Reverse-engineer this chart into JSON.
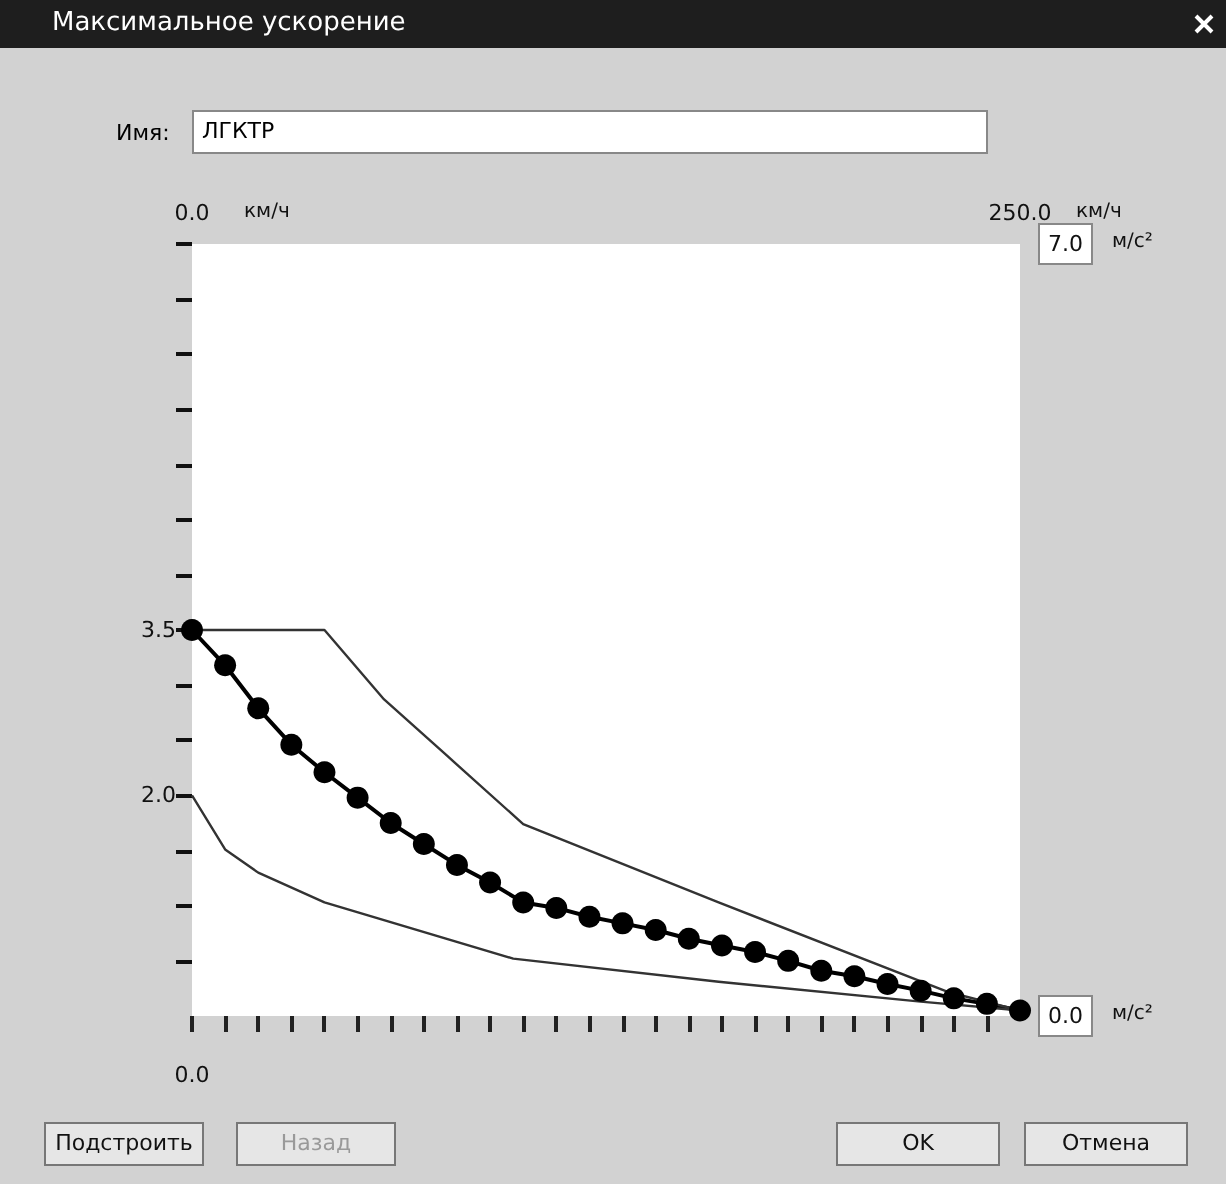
{
  "chart_data": {
    "type": "line",
    "title": "Максимальное ускорение",
    "annotations": [
      "Имя:",
      "ЛГКТР",
      "Подстроить",
      "Назад",
      "OK",
      "Отмена",
      "0.0"
    ],
    "xlim": [
      0,
      250
    ],
    "xticks": [
      {
        "value": 0,
        "label": "0.0"
      },
      {
        "value": 10,
        "label": null
      },
      {
        "value": 20,
        "label": null
      },
      {
        "value": 30,
        "label": null
      },
      {
        "value": 40,
        "label": null
      },
      {
        "value": 50,
        "label": null
      },
      {
        "value": 60,
        "label": null
      },
      {
        "value": 70,
        "label": null
      },
      {
        "value": 80,
        "label": null
      },
      {
        "value": 90,
        "label": null
      },
      {
        "value": 100,
        "label": null
      },
      {
        "value": 110,
        "label": null
      },
      {
        "value": 120,
        "label": null
      },
      {
        "value": 130,
        "label": null
      },
      {
        "value": 140,
        "label": null
      },
      {
        "value": 150,
        "label": null
      },
      {
        "value": 160,
        "label": null
      },
      {
        "value": 170,
        "label": null
      },
      {
        "value": 180,
        "label": null
      },
      {
        "value": 190,
        "label": null
      },
      {
        "value": 200,
        "label": null
      },
      {
        "value": 210,
        "label": null
      },
      {
        "value": 220,
        "label": null
      },
      {
        "value": 230,
        "label": null
      },
      {
        "value": 240,
        "label": null
      },
      {
        "value": 250,
        "label": "250.0"
      }
    ],
    "xlabel": "км/ч",
    "ylim": [
      0,
      7
    ],
    "yticks": [
      {
        "value": 0.5,
        "label": null
      },
      {
        "value": 1,
        "label": null
      },
      {
        "value": 1.5,
        "label": null
      },
      {
        "value": 2,
        "label": "2.0"
      },
      {
        "value": 2.5,
        "label": null
      },
      {
        "value": 3,
        "label": null
      },
      {
        "value": 3.5,
        "label": "3.5"
      },
      {
        "value": 4,
        "label": null
      },
      {
        "value": 4.5,
        "label": null
      },
      {
        "value": 5,
        "label": null
      },
      {
        "value": 5.5,
        "label": null
      },
      {
        "value": 6,
        "label": null
      },
      {
        "value": 6.5,
        "label": null
      },
      {
        "value": 7,
        "label": null
      }
    ],
    "y2lim": [
      0,
      7
    ],
    "y2ticks": [
      {
        "value": 0,
        "label": "0.0"
      },
      {
        "value": 7,
        "label": "7.0"
      }
    ],
    "y2label": "м/с²",
    "grid": false,
    "series": [
      {
        "color": "#000000",
        "marker": "circle",
        "x": [
          0,
          10,
          20,
          30,
          40,
          50,
          60,
          70,
          80,
          90,
          100,
          110,
          120,
          130,
          140,
          150,
          160,
          170,
          180,
          190,
          200,
          210,
          220,
          230,
          240,
          250
        ],
        "values": [
          3.5,
          3.18,
          2.79,
          2.46,
          2.21,
          1.98,
          1.75,
          1.56,
          1.37,
          1.21,
          1.03,
          0.98,
          0.9,
          0.84,
          0.78,
          0.7,
          0.64,
          0.58,
          0.5,
          0.41,
          0.36,
          0.29,
          0.23,
          0.16,
          0.11,
          0.05
        ]
      },
      {
        "color": "#333333",
        "marker": "none",
        "x": [
          0,
          40,
          58,
          77,
          100,
          159,
          228,
          250
        ],
        "values": [
          3.5,
          3.5,
          2.87,
          2.36,
          1.74,
          1.03,
          0.22,
          0.05
        ]
      },
      {
        "color": "#333333",
        "marker": "none",
        "x": [
          0,
          10,
          20,
          40,
          97,
          159,
          220,
          250
        ],
        "values": [
          2.0,
          1.51,
          1.3,
          1.03,
          0.52,
          0.31,
          0.13,
          0.05
        ]
      }
    ]
  }
}
